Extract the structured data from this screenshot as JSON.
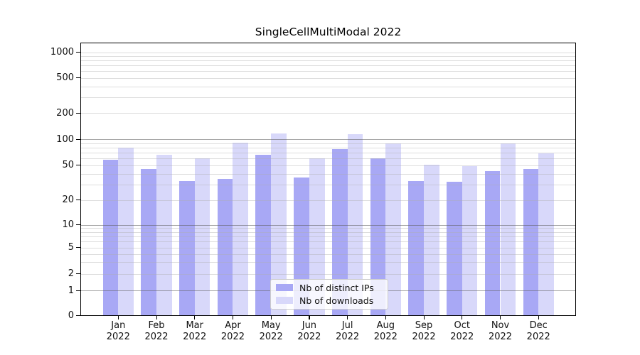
{
  "chart_data": {
    "type": "bar",
    "title": "SingleCellMultiModal 2022",
    "categories": [
      "Jan",
      "Feb",
      "Mar",
      "Apr",
      "May",
      "Jun",
      "Jul",
      "Aug",
      "Sep",
      "Oct",
      "Nov",
      "Dec"
    ],
    "category_year_suffix": "2022",
    "series": [
      {
        "name": "Nb of distinct IPs",
        "color": "#a8a8f5",
        "values": [
          58,
          45,
          33,
          35,
          66,
          36,
          77,
          60,
          33,
          32,
          43,
          45
        ]
      },
      {
        "name": "Nb of downloads",
        "color": "#d8d8fa",
        "values": [
          79,
          66,
          60,
          91,
          116,
          60,
          113,
          89,
          51,
          49,
          90,
          68
        ]
      }
    ],
    "xlabel": "",
    "ylabel": "",
    "yscale": "symlog",
    "y_ticks": [
      0,
      1,
      2,
      5,
      10,
      20,
      50,
      100,
      200,
      500,
      1000
    ],
    "ylim": [
      0,
      1300
    ],
    "grid": true,
    "legend_position": "lower center"
  }
}
